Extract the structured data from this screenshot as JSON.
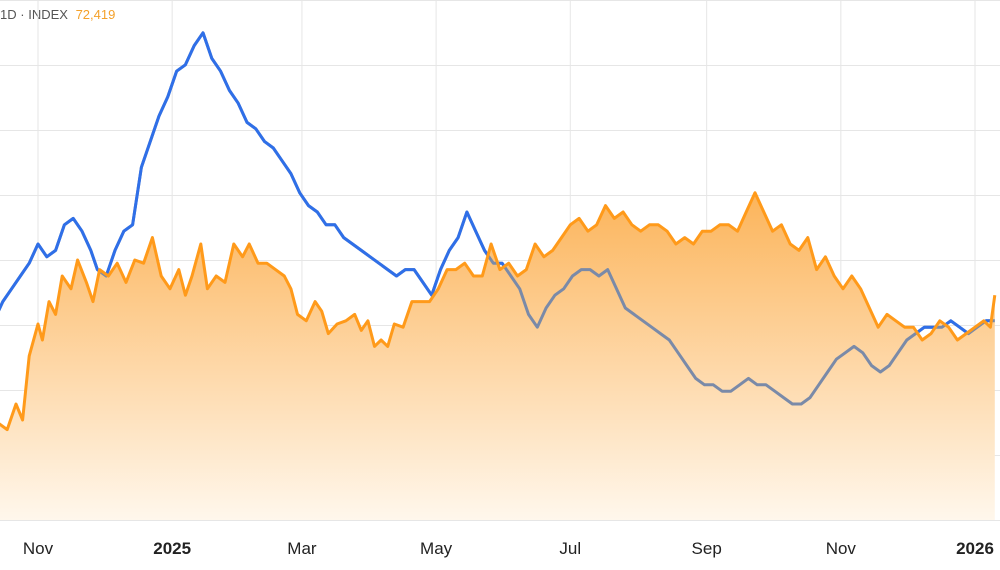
{
  "header": {
    "interval": "1D",
    "separator": "·",
    "symbol": "INDEX",
    "last_value": "72,419"
  },
  "colors": {
    "index_line": "#ff9a1a",
    "index_fill_top": "#fcb45a",
    "index_fill_bottom": "#fff7ec",
    "compare_above": "#2f6fe8",
    "compare_below": "#7a8aa8",
    "grid": "#e6e6e6",
    "axis_text": "#222222"
  },
  "chart_data": {
    "type": "area",
    "title": "",
    "xlabel": "",
    "ylabel": "",
    "x_tick_labels": [
      {
        "date": "2024-11-01",
        "label": "Nov",
        "bold": false
      },
      {
        "date": "2025-01-01",
        "label": "2025",
        "bold": true
      },
      {
        "date": "2025-03-01",
        "label": "Mar",
        "bold": false
      },
      {
        "date": "2025-05-01",
        "label": "May",
        "bold": false
      },
      {
        "date": "2025-07-01",
        "label": "Jul",
        "bold": false
      },
      {
        "date": "2025-09-01",
        "label": "Sep",
        "bold": false
      },
      {
        "date": "2025-11-01",
        "label": "Nov",
        "bold": false
      },
      {
        "date": "2026-01-01",
        "label": "2026",
        "bold": true
      }
    ],
    "y_axis_labels_shown": false,
    "grid": true,
    "series": [
      {
        "style": "filled-area",
        "values": [
          [
            "2024-10-06",
            0.2
          ],
          [
            "2024-10-12",
            0.25
          ],
          [
            "2024-10-18",
            0.22
          ],
          [
            "2024-10-22",
            0.3
          ],
          [
            "2024-10-25",
            0.25
          ],
          [
            "2024-10-28",
            0.45
          ],
          [
            "2024-11-01",
            0.55
          ],
          [
            "2024-11-03",
            0.5
          ],
          [
            "2024-11-06",
            0.62
          ],
          [
            "2024-11-09",
            0.58
          ],
          [
            "2024-11-12",
            0.7
          ],
          [
            "2024-11-16",
            0.66
          ],
          [
            "2024-11-19",
            0.75
          ],
          [
            "2024-11-23",
            0.68
          ],
          [
            "2024-11-26",
            0.62
          ],
          [
            "2024-11-29",
            0.72
          ],
          [
            "2024-12-03",
            0.7
          ],
          [
            "2024-12-07",
            0.74
          ],
          [
            "2024-12-11",
            0.68
          ],
          [
            "2024-12-15",
            0.75
          ],
          [
            "2024-12-19",
            0.74
          ],
          [
            "2024-12-23",
            0.82
          ],
          [
            "2024-12-27",
            0.7
          ],
          [
            "2024-12-31",
            0.66
          ],
          [
            "2025-01-04",
            0.72
          ],
          [
            "2025-01-07",
            0.64
          ],
          [
            "2025-01-10",
            0.7
          ],
          [
            "2025-01-14",
            0.8
          ],
          [
            "2025-01-17",
            0.66
          ],
          [
            "2025-01-21",
            0.7
          ],
          [
            "2025-01-25",
            0.68
          ],
          [
            "2025-01-29",
            0.8
          ],
          [
            "2025-02-02",
            0.76
          ],
          [
            "2025-02-05",
            0.8
          ],
          [
            "2025-02-09",
            0.74
          ],
          [
            "2025-02-13",
            0.74
          ],
          [
            "2025-02-17",
            0.72
          ],
          [
            "2025-02-21",
            0.7
          ],
          [
            "2025-02-24",
            0.66
          ],
          [
            "2025-02-27",
            0.58
          ],
          [
            "2025-03-03",
            0.56
          ],
          [
            "2025-03-07",
            0.62
          ],
          [
            "2025-03-10",
            0.59
          ],
          [
            "2025-03-13",
            0.52
          ],
          [
            "2025-03-17",
            0.55
          ],
          [
            "2025-03-21",
            0.56
          ],
          [
            "2025-03-25",
            0.58
          ],
          [
            "2025-03-28",
            0.53
          ],
          [
            "2025-03-31",
            0.56
          ],
          [
            "2025-04-03",
            0.48
          ],
          [
            "2025-04-06",
            0.5
          ],
          [
            "2025-04-09",
            0.48
          ],
          [
            "2025-04-12",
            0.55
          ],
          [
            "2025-04-16",
            0.54
          ],
          [
            "2025-04-20",
            0.62
          ],
          [
            "2025-04-24",
            0.62
          ],
          [
            "2025-04-28",
            0.62
          ],
          [
            "2025-05-02",
            0.66
          ],
          [
            "2025-05-06",
            0.72
          ],
          [
            "2025-05-10",
            0.72
          ],
          [
            "2025-05-14",
            0.74
          ],
          [
            "2025-05-18",
            0.7
          ],
          [
            "2025-05-22",
            0.7
          ],
          [
            "2025-05-26",
            0.8
          ],
          [
            "2025-05-30",
            0.72
          ],
          [
            "2025-06-03",
            0.74
          ],
          [
            "2025-06-07",
            0.7
          ],
          [
            "2025-06-11",
            0.72
          ],
          [
            "2025-06-15",
            0.8
          ],
          [
            "2025-06-19",
            0.76
          ],
          [
            "2025-06-23",
            0.78
          ],
          [
            "2025-06-27",
            0.82
          ],
          [
            "2025-07-01",
            0.86
          ],
          [
            "2025-07-05",
            0.88
          ],
          [
            "2025-07-09",
            0.84
          ],
          [
            "2025-07-13",
            0.86
          ],
          [
            "2025-07-17",
            0.92
          ],
          [
            "2025-07-21",
            0.88
          ],
          [
            "2025-07-25",
            0.9
          ],
          [
            "2025-07-29",
            0.86
          ],
          [
            "2025-08-02",
            0.84
          ],
          [
            "2025-08-06",
            0.86
          ],
          [
            "2025-08-10",
            0.86
          ],
          [
            "2025-08-14",
            0.84
          ],
          [
            "2025-08-18",
            0.8
          ],
          [
            "2025-08-22",
            0.82
          ],
          [
            "2025-08-26",
            0.8
          ],
          [
            "2025-08-30",
            0.84
          ],
          [
            "2025-09-03",
            0.84
          ],
          [
            "2025-09-07",
            0.86
          ],
          [
            "2025-09-11",
            0.86
          ],
          [
            "2025-09-15",
            0.84
          ],
          [
            "2025-09-19",
            0.9
          ],
          [
            "2025-09-23",
            0.96
          ],
          [
            "2025-09-27",
            0.9
          ],
          [
            "2025-10-01",
            0.84
          ],
          [
            "2025-10-05",
            0.86
          ],
          [
            "2025-10-09",
            0.8
          ],
          [
            "2025-10-13",
            0.78
          ],
          [
            "2025-10-17",
            0.82
          ],
          [
            "2025-10-21",
            0.72
          ],
          [
            "2025-10-25",
            0.76
          ],
          [
            "2025-10-29",
            0.7
          ],
          [
            "2025-11-02",
            0.66
          ],
          [
            "2025-11-06",
            0.7
          ],
          [
            "2025-11-10",
            0.66
          ],
          [
            "2025-11-14",
            0.6
          ],
          [
            "2025-11-18",
            0.54
          ],
          [
            "2025-11-22",
            0.58
          ],
          [
            "2025-11-26",
            0.56
          ],
          [
            "2025-11-30",
            0.54
          ],
          [
            "2025-12-04",
            0.54
          ],
          [
            "2025-12-08",
            0.5
          ],
          [
            "2025-12-12",
            0.52
          ],
          [
            "2025-12-16",
            0.56
          ],
          [
            "2025-12-20",
            0.54
          ],
          [
            "2025-12-24",
            0.5
          ],
          [
            "2025-12-28",
            0.52
          ],
          [
            "2026-01-01",
            0.54
          ],
          [
            "2026-01-05",
            0.56
          ],
          [
            "2026-01-08",
            0.54
          ],
          [
            "2026-01-10",
            0.64
          ]
        ]
      },
      {
        "style": "line-blue-above-grey-below",
        "values": [
          [
            "2024-10-06",
            0.42
          ],
          [
            "2024-10-09",
            0.5
          ],
          [
            "2024-10-12",
            0.56
          ],
          [
            "2024-10-16",
            0.62
          ],
          [
            "2024-10-20",
            0.66
          ],
          [
            "2024-10-24",
            0.7
          ],
          [
            "2024-10-28",
            0.74
          ],
          [
            "2024-11-01",
            0.8
          ],
          [
            "2024-11-05",
            0.76
          ],
          [
            "2024-11-09",
            0.78
          ],
          [
            "2024-11-13",
            0.86
          ],
          [
            "2024-11-17",
            0.88
          ],
          [
            "2024-11-21",
            0.84
          ],
          [
            "2024-11-25",
            0.78
          ],
          [
            "2024-11-28",
            0.72
          ],
          [
            "2024-12-02",
            0.7
          ],
          [
            "2024-12-06",
            0.78
          ],
          [
            "2024-12-10",
            0.84
          ],
          [
            "2024-12-14",
            0.86
          ],
          [
            "2024-12-18",
            1.04
          ],
          [
            "2024-12-22",
            1.12
          ],
          [
            "2024-12-26",
            1.2
          ],
          [
            "2024-12-30",
            1.26
          ],
          [
            "2025-01-03",
            1.34
          ],
          [
            "2025-01-07",
            1.36
          ],
          [
            "2025-01-11",
            1.42
          ],
          [
            "2025-01-15",
            1.46
          ],
          [
            "2025-01-19",
            1.38
          ],
          [
            "2025-01-23",
            1.34
          ],
          [
            "2025-01-27",
            1.28
          ],
          [
            "2025-01-31",
            1.24
          ],
          [
            "2025-02-04",
            1.18
          ],
          [
            "2025-02-08",
            1.16
          ],
          [
            "2025-02-12",
            1.12
          ],
          [
            "2025-02-16",
            1.1
          ],
          [
            "2025-02-20",
            1.06
          ],
          [
            "2025-02-24",
            1.02
          ],
          [
            "2025-02-28",
            0.96
          ],
          [
            "2025-03-04",
            0.92
          ],
          [
            "2025-03-08",
            0.9
          ],
          [
            "2025-03-12",
            0.86
          ],
          [
            "2025-03-16",
            0.86
          ],
          [
            "2025-03-20",
            0.82
          ],
          [
            "2025-03-24",
            0.8
          ],
          [
            "2025-03-28",
            0.78
          ],
          [
            "2025-04-01",
            0.76
          ],
          [
            "2025-04-05",
            0.74
          ],
          [
            "2025-04-09",
            0.72
          ],
          [
            "2025-04-13",
            0.7
          ],
          [
            "2025-04-17",
            0.72
          ],
          [
            "2025-04-21",
            0.72
          ],
          [
            "2025-04-25",
            0.68
          ],
          [
            "2025-04-29",
            0.64
          ],
          [
            "2025-05-03",
            0.72
          ],
          [
            "2025-05-07",
            0.78
          ],
          [
            "2025-05-11",
            0.82
          ],
          [
            "2025-05-15",
            0.9
          ],
          [
            "2025-05-19",
            0.84
          ],
          [
            "2025-05-23",
            0.78
          ],
          [
            "2025-05-27",
            0.74
          ],
          [
            "2025-05-31",
            0.74
          ],
          [
            "2025-06-04",
            0.7
          ],
          [
            "2025-06-08",
            0.66
          ],
          [
            "2025-06-12",
            0.58
          ],
          [
            "2025-06-16",
            0.54
          ],
          [
            "2025-06-20",
            0.6
          ],
          [
            "2025-06-24",
            0.64
          ],
          [
            "2025-06-28",
            0.66
          ],
          [
            "2025-07-02",
            0.7
          ],
          [
            "2025-07-06",
            0.72
          ],
          [
            "2025-07-10",
            0.72
          ],
          [
            "2025-07-14",
            0.7
          ],
          [
            "2025-07-18",
            0.72
          ],
          [
            "2025-07-22",
            0.66
          ],
          [
            "2025-07-26",
            0.6
          ],
          [
            "2025-07-30",
            0.58
          ],
          [
            "2025-08-03",
            0.56
          ],
          [
            "2025-08-07",
            0.54
          ],
          [
            "2025-08-11",
            0.52
          ],
          [
            "2025-08-15",
            0.5
          ],
          [
            "2025-08-19",
            0.46
          ],
          [
            "2025-08-23",
            0.42
          ],
          [
            "2025-08-27",
            0.38
          ],
          [
            "2025-08-31",
            0.36
          ],
          [
            "2025-09-04",
            0.36
          ],
          [
            "2025-09-08",
            0.34
          ],
          [
            "2025-09-12",
            0.34
          ],
          [
            "2025-09-16",
            0.36
          ],
          [
            "2025-09-20",
            0.38
          ],
          [
            "2025-09-24",
            0.36
          ],
          [
            "2025-09-28",
            0.36
          ],
          [
            "2025-10-02",
            0.34
          ],
          [
            "2025-10-06",
            0.32
          ],
          [
            "2025-10-10",
            0.3
          ],
          [
            "2025-10-14",
            0.3
          ],
          [
            "2025-10-18",
            0.32
          ],
          [
            "2025-10-22",
            0.36
          ],
          [
            "2025-10-26",
            0.4
          ],
          [
            "2025-10-30",
            0.44
          ],
          [
            "2025-11-03",
            0.46
          ],
          [
            "2025-11-07",
            0.48
          ],
          [
            "2025-11-11",
            0.46
          ],
          [
            "2025-11-15",
            0.42
          ],
          [
            "2025-11-19",
            0.4
          ],
          [
            "2025-11-23",
            0.42
          ],
          [
            "2025-11-27",
            0.46
          ],
          [
            "2025-12-01",
            0.5
          ],
          [
            "2025-12-05",
            0.52
          ],
          [
            "2025-12-09",
            0.54
          ],
          [
            "2025-12-13",
            0.54
          ],
          [
            "2025-12-17",
            0.54
          ],
          [
            "2025-12-21",
            0.56
          ],
          [
            "2025-12-25",
            0.54
          ],
          [
            "2025-12-29",
            0.52
          ],
          [
            "2026-01-02",
            0.54
          ],
          [
            "2026-01-06",
            0.56
          ],
          [
            "2026-01-10",
            0.56
          ]
        ]
      }
    ]
  }
}
